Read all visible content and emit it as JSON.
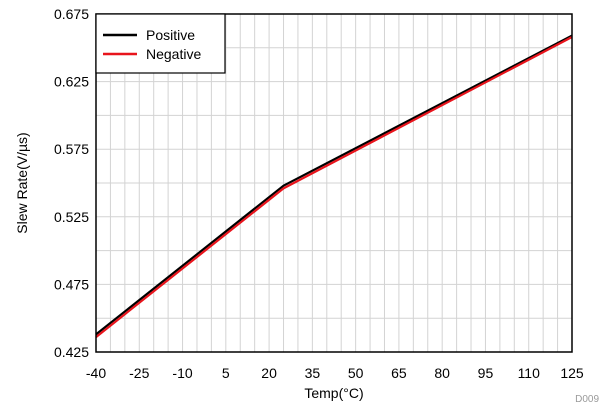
{
  "chart_data": {
    "type": "line",
    "xlabel": "Temp(°C)",
    "ylabel": "Slew Rate(V/µs)",
    "xlim": [
      -40,
      125
    ],
    "ylim": [
      0.425,
      0.675
    ],
    "x_ticks": [
      "-40",
      "-25",
      "-10",
      "5",
      "20",
      "35",
      "50",
      "65",
      "80",
      "95",
      "110",
      "125"
    ],
    "y_ticks": [
      "0.425",
      "0.475",
      "0.525",
      "0.575",
      "0.625",
      "0.675"
    ],
    "x_tick_values": [
      -40,
      -25,
      -10,
      5,
      20,
      35,
      50,
      65,
      80,
      95,
      110,
      125
    ],
    "y_tick_values": [
      0.425,
      0.475,
      0.525,
      0.575,
      0.625,
      0.675
    ],
    "x_minor_step": 5,
    "grid": true,
    "legend_placement": "top-left",
    "series": [
      {
        "name": "Positive",
        "color": "#000000",
        "x": [
          -40,
          25,
          125
        ],
        "y": [
          0.438,
          0.548,
          0.659
        ]
      },
      {
        "name": "Negative",
        "color": "#e8141c",
        "x": [
          -40,
          25,
          125
        ],
        "y": [
          0.436,
          0.546,
          0.658
        ]
      }
    ],
    "figure_id": "D009"
  }
}
